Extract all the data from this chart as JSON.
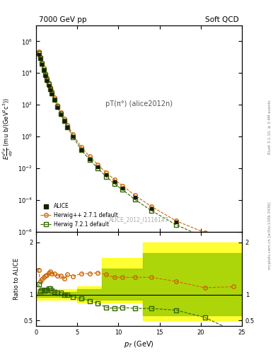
{
  "title_left": "7000 GeV pp",
  "title_right": "Soft QCD",
  "right_label": "Rivet 3.1.10, ≥ 3.4M events",
  "watermark": "mcplots.cern.ch [arXiv:1306.3436]",
  "plot_label": "pT(π°) (alice2012n)",
  "analysis_label": "ALICE_2012_I1116147",
  "ylabel_main": "E d³σ/dp³ (mu b/(GeV²c³))",
  "ylabel_ratio": "Ratio to ALICE",
  "xlabel": "p_T (GeV)",
  "ylim_main": [
    1e-06,
    10000000.0
  ],
  "ylim_ratio": [
    0.4,
    2.2
  ],
  "xlim": [
    0,
    25
  ],
  "alice_x": [
    0.3,
    0.5,
    0.7,
    0.9,
    1.1,
    1.3,
    1.5,
    1.7,
    1.9,
    2.2,
    2.6,
    3.0,
    3.4,
    3.8,
    4.5,
    5.5,
    6.5,
    7.5,
    8.5,
    9.5,
    10.5,
    12.0,
    14.0,
    17.0,
    20.5
  ],
  "alice_y": [
    150000.0,
    80000.0,
    35000.0,
    15000.0,
    7000,
    3500,
    1700,
    900,
    500,
    200,
    70,
    25,
    10,
    4.0,
    1.0,
    0.15,
    0.04,
    0.012,
    0.004,
    0.0015,
    0.0006,
    0.00015,
    3e-05,
    4e-06,
    8e-07
  ],
  "alice_yerr": [
    5000,
    3000,
    1500,
    700,
    300,
    150,
    80,
    40,
    25,
    10,
    3,
    1,
    0.4,
    0.2,
    0.05,
    0.008,
    0.002,
    0.0006,
    0.0002,
    8e-05,
    3e-05,
    8e-06,
    2e-06,
    3e-07,
    8e-08
  ],
  "herwig_pp_x": [
    0.3,
    0.5,
    0.7,
    0.9,
    1.1,
    1.3,
    1.5,
    1.7,
    1.9,
    2.2,
    2.6,
    3.0,
    3.4,
    3.8,
    4.5,
    5.5,
    6.5,
    7.5,
    8.5,
    9.5,
    10.5,
    12.0,
    14.0,
    17.0,
    20.5,
    24.0
  ],
  "herwig_pp_y": [
    220000.0,
    100000.0,
    45000.0,
    20000.0,
    9500,
    4800,
    2400,
    1300,
    700,
    280,
    95,
    34,
    13,
    5.5,
    1.35,
    0.21,
    0.056,
    0.017,
    0.0055,
    0.002,
    0.0008,
    0.0002,
    4e-05,
    5e-06,
    9e-07,
    1.5e-07
  ],
  "herwig_72_x": [
    0.3,
    0.5,
    0.7,
    0.9,
    1.1,
    1.3,
    1.5,
    1.7,
    1.9,
    2.2,
    2.6,
    3.0,
    3.4,
    3.8,
    4.5,
    5.5,
    6.5,
    7.5,
    8.5,
    9.5,
    10.5,
    12.0,
    14.0,
    17.0,
    20.5,
    24.0
  ],
  "herwig_72_y": [
    180000.0,
    85000.0,
    38000.0,
    16000.0,
    7500,
    3800,
    1900,
    1000,
    540,
    210,
    72,
    26,
    10,
    4.0,
    0.95,
    0.14,
    0.035,
    0.01,
    0.003,
    0.0011,
    0.00045,
    0.00011,
    2.2e-05,
    2.8e-06,
    4.5e-07,
    7e-08
  ],
  "herwig_pp_ratio": [
    1.47,
    1.25,
    1.29,
    1.33,
    1.36,
    1.37,
    1.41,
    1.44,
    1.4,
    1.4,
    1.36,
    1.36,
    1.3,
    1.38,
    1.35,
    1.4,
    1.4,
    1.42,
    1.38,
    1.33,
    1.33,
    1.33,
    1.33,
    1.25,
    1.13,
    1.15
  ],
  "herwig_72_ratio": [
    1.2,
    1.06,
    1.09,
    1.07,
    1.07,
    1.09,
    1.12,
    1.11,
    1.08,
    1.05,
    1.03,
    1.04,
    1.0,
    1.0,
    0.95,
    0.93,
    0.875,
    0.833,
    0.75,
    0.733,
    0.75,
    0.733,
    0.733,
    0.7,
    0.56,
    0.3
  ],
  "herwig_pp_ratio_x": [
    0.3,
    0.5,
    0.7,
    0.9,
    1.1,
    1.3,
    1.5,
    1.7,
    1.9,
    2.2,
    2.6,
    3.0,
    3.4,
    3.8,
    4.5,
    5.5,
    6.5,
    7.5,
    8.5,
    9.5,
    10.5,
    12.0,
    14.0,
    17.0,
    20.5,
    24.0
  ],
  "herwig_72_ratio_x": [
    0.3,
    0.5,
    0.7,
    0.9,
    1.1,
    1.3,
    1.5,
    1.7,
    1.9,
    2.2,
    2.6,
    3.0,
    3.4,
    3.8,
    4.5,
    5.5,
    6.5,
    7.5,
    8.5,
    9.5,
    10.5,
    12.0,
    14.0,
    17.0,
    20.5,
    24.0
  ],
  "band_yellow_x": [
    0.0,
    5.0,
    5.0,
    8.0,
    8.0,
    13.0,
    13.0,
    17.0,
    17.0,
    22.0,
    22.0,
    25.0
  ],
  "band_yellow_y_low": [
    0.9,
    0.9,
    0.85,
    0.85,
    0.85,
    0.85,
    0.5,
    0.5,
    0.5,
    0.5,
    0.5,
    0.5
  ],
  "band_yellow_y_high": [
    1.1,
    1.1,
    1.15,
    1.15,
    1.7,
    1.7,
    2.0,
    2.0,
    2.0,
    2.0,
    2.0,
    2.0
  ],
  "band_green_x": [
    0.0,
    5.0,
    5.0,
    8.0,
    8.0,
    13.0,
    13.0,
    17.0,
    17.0,
    22.0,
    22.0,
    25.0
  ],
  "band_green_y_low": [
    0.95,
    0.95,
    0.9,
    0.9,
    0.9,
    0.9,
    0.6,
    0.6,
    0.6,
    0.6,
    0.6,
    0.6
  ],
  "band_green_y_high": [
    1.05,
    1.05,
    1.1,
    1.1,
    1.5,
    1.5,
    1.8,
    1.8,
    1.8,
    1.8,
    1.8,
    1.8
  ],
  "color_alice": "#1a1a00",
  "color_herwig_pp": "#cc6600",
  "color_herwig_72": "#336600",
  "color_yellow_band": "#ffff00",
  "color_green_band": "#99cc00",
  "legend_labels": [
    "ALICE",
    "Herwig++ 2.7.1 default",
    "Herwig 7.2.1 default"
  ]
}
